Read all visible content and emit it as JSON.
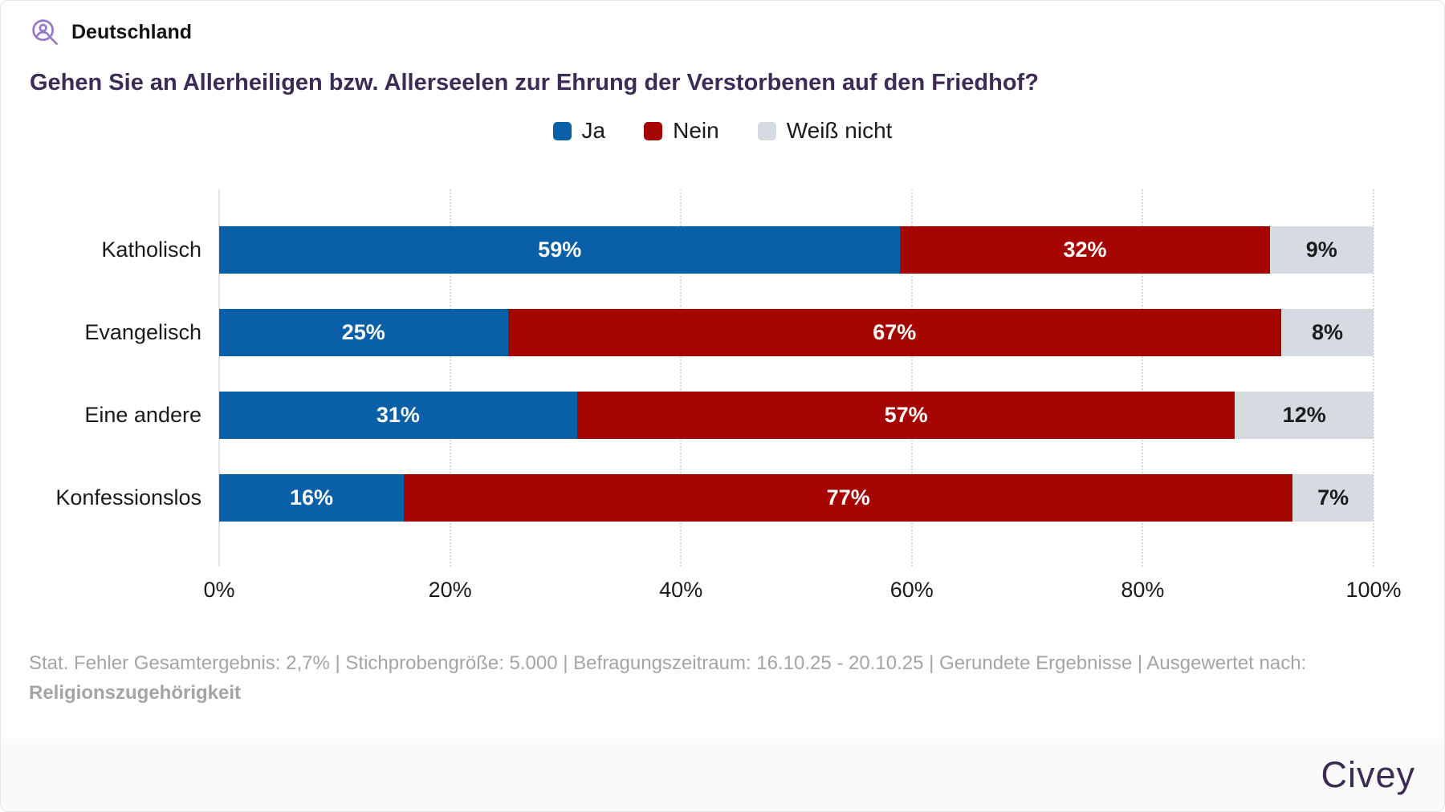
{
  "header": {
    "region_label": "Deutschland",
    "title": "Gehen Sie an Allerheiligen bzw. Allerseelen zur Ehrung der Verstorbenen auf den Friedhof?"
  },
  "legend": [
    {
      "label": "Ja",
      "color": "#0a60a8"
    },
    {
      "label": "Nein",
      "color": "#a60602"
    },
    {
      "label": "Weiß nicht",
      "color": "#d5dbe1"
    }
  ],
  "chart_data": {
    "type": "bar",
    "orientation": "horizontal",
    "stacked": true,
    "title": "Gehen Sie an Allerheiligen bzw. Allerseelen zur Ehrung der Verstorbenen auf den Friedhof?",
    "categories": [
      "Katholisch",
      "Evangelisch",
      "Eine andere",
      "Konfessionslos"
    ],
    "series": [
      {
        "name": "Ja",
        "color": "#0a60a8",
        "label_color": "#ffffff",
        "values": [
          59,
          25,
          31,
          16
        ]
      },
      {
        "name": "Nein",
        "color": "#a60602",
        "label_color": "#ffffff",
        "values": [
          32,
          67,
          57,
          77
        ]
      },
      {
        "name": "Weiß nicht",
        "color": "#d5dbe1",
        "label_color": "#1d1d1d",
        "values": [
          9,
          8,
          12,
          7
        ]
      }
    ],
    "value_suffix": "%",
    "xlim": [
      0,
      100
    ],
    "x_ticks": [
      "0%",
      "20%",
      "40%",
      "60%",
      "80%",
      "100%"
    ],
    "grid": "vertical dotted gridlines every 20%, legend top center"
  },
  "footer": {
    "stats_line": "Stat. Fehler Gesamtergebnis: 2,7% | Stichprobengröße: 5.000 | Befragungszeitraum: 16.10.25 - 20.10.25 | Gerundete Ergebnisse | Ausgewertet nach:",
    "stats_breakdown": "Religionszugehörigkeit",
    "brand": "Civey"
  },
  "colors": {
    "title_purple": "#3b2b55",
    "icon_purple": "#9678c8",
    "stats_gray": "#a4a4a4",
    "band_background": "#fafafa"
  }
}
